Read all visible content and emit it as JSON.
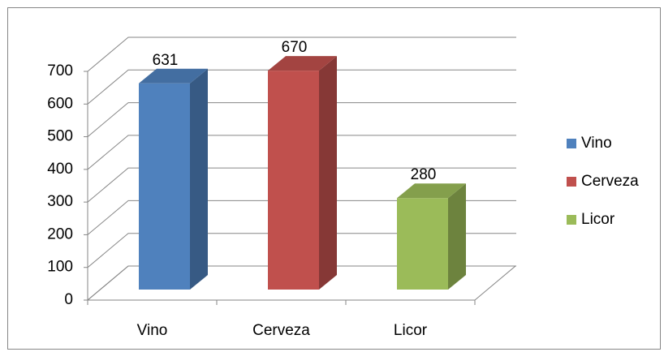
{
  "chart_data": {
    "type": "bar3d",
    "categories": [
      "Vino",
      "Cerveza",
      "Licor"
    ],
    "values": [
      631,
      670,
      280
    ],
    "colors": [
      "#4f81bd",
      "#c0504d",
      "#9bbb59"
    ],
    "ylim": [
      0,
      700
    ],
    "yticks": [
      0,
      100,
      200,
      300,
      400,
      500,
      600,
      700
    ],
    "grid": true,
    "legend": "right"
  }
}
